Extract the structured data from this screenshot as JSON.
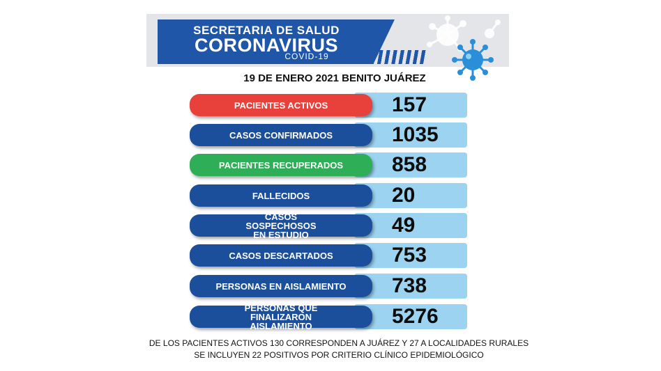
{
  "header": {
    "line1": "SECRETARIA DE SALUD",
    "line2": "CORONAVIRUS",
    "line3": "COVID-19"
  },
  "date_line": "19 DE ENERO 2021 BENITO JUÁREZ",
  "stats": [
    {
      "label": "PACIENTES ACTIVOS",
      "value": "157",
      "color": "#e8403b"
    },
    {
      "label": "CASOS CONFIRMADOS",
      "value": "1035",
      "color": "#1b4f9c"
    },
    {
      "label": "PACIENTES RECUPERADOS",
      "value": "858",
      "color": "#2eae57"
    },
    {
      "label": "FALLECIDOS",
      "value": "20",
      "color": "#1b4f9c"
    },
    {
      "label": "CASOS SOSPECHOSOS EN ESTUDIO",
      "value": "49",
      "color": "#1b4f9c"
    },
    {
      "label": "CASOS DESCARTADOS",
      "value": "753",
      "color": "#1b4f9c"
    },
    {
      "label": "PERSONAS EN AISLAMIENTO",
      "value": "738",
      "color": "#1b4f9c"
    },
    {
      "label": "PERSONAS QUE FINALIZARON AISLAMIENTO",
      "value": "5276",
      "color": "#1b4f9c"
    }
  ],
  "footnotes": [
    "DE LOS PACIENTES ACTIVOS 130 CORRESPONDEN A JUÁREZ Y 27 A LOCALIDADES RURALES",
    "SE INCLUYEN 22 POSITIVOS  POR  CRITERIO CLÍNICO EPIDEMIOLÓGICO"
  ],
  "colors": {
    "brand_blue": "#1f56a8",
    "value_bg": "#9bd3f0",
    "active_red": "#e8403b",
    "recovered_green": "#2eae57"
  }
}
